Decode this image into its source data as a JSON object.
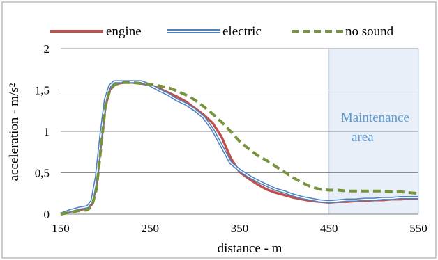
{
  "chart_data": {
    "type": "line",
    "xlabel": "distance - m",
    "ylabel": "acceleration - m/s²",
    "xlim": [
      150,
      550
    ],
    "ylim": [
      0,
      2
    ],
    "x_ticks": [
      "150",
      "250",
      "350",
      "450",
      "550"
    ],
    "x_tick_values": [
      150,
      250,
      350,
      450,
      550
    ],
    "y_ticks": [
      "0",
      "0,5",
      "1",
      "1,5",
      "2"
    ],
    "y_tick_values": [
      0,
      0.5,
      1,
      1.5,
      2
    ],
    "grid": "horizontal",
    "legend_position": "top",
    "annotation": {
      "text_line1": "Maintenance",
      "text_line2": "area",
      "x_from": 450,
      "x_to": 550,
      "color": "#5b9bd5"
    },
    "series": [
      {
        "name": "engine",
        "color": "#c0504d",
        "style": "solid",
        "x": [
          150,
          160,
          170,
          180,
          185,
          190,
          195,
          200,
          205,
          210,
          215,
          220,
          230,
          240,
          250,
          260,
          270,
          280,
          290,
          300,
          310,
          320,
          330,
          340,
          350,
          360,
          370,
          380,
          390,
          400,
          410,
          420,
          430,
          440,
          450,
          460,
          470,
          480,
          490,
          500,
          510,
          520,
          530,
          540,
          550
        ],
        "y": [
          0,
          0.03,
          0.05,
          0.07,
          0.12,
          0.35,
          0.85,
          1.3,
          1.5,
          1.56,
          1.58,
          1.59,
          1.59,
          1.58,
          1.56,
          1.52,
          1.47,
          1.42,
          1.36,
          1.28,
          1.2,
          1.1,
          0.93,
          0.68,
          0.51,
          0.43,
          0.36,
          0.3,
          0.26,
          0.23,
          0.2,
          0.18,
          0.16,
          0.15,
          0.14,
          0.15,
          0.15,
          0.16,
          0.16,
          0.17,
          0.17,
          0.18,
          0.18,
          0.19,
          0.19
        ]
      },
      {
        "name": "electric",
        "color": "#4f81bd",
        "style": "double",
        "x": [
          150,
          160,
          170,
          180,
          185,
          190,
          195,
          200,
          205,
          210,
          215,
          220,
          230,
          240,
          250,
          260,
          270,
          280,
          290,
          300,
          310,
          320,
          330,
          340,
          350,
          360,
          370,
          380,
          390,
          400,
          410,
          420,
          430,
          440,
          450,
          460,
          470,
          480,
          490,
          500,
          510,
          520,
          530,
          540,
          550
        ],
        "y": [
          0,
          0.04,
          0.07,
          0.09,
          0.16,
          0.45,
          0.95,
          1.38,
          1.55,
          1.6,
          1.6,
          1.6,
          1.6,
          1.6,
          1.56,
          1.5,
          1.45,
          1.38,
          1.33,
          1.26,
          1.17,
          1.02,
          0.82,
          0.62,
          0.53,
          0.46,
          0.4,
          0.35,
          0.3,
          0.27,
          0.23,
          0.2,
          0.18,
          0.16,
          0.15,
          0.16,
          0.17,
          0.17,
          0.18,
          0.18,
          0.19,
          0.19,
          0.2,
          0.2,
          0.2
        ]
      },
      {
        "name": "no sound",
        "color": "#77933c",
        "style": "dashed",
        "x": [
          150,
          160,
          170,
          180,
          185,
          190,
          195,
          200,
          205,
          210,
          215,
          220,
          230,
          240,
          250,
          260,
          270,
          280,
          290,
          300,
          310,
          320,
          330,
          340,
          350,
          360,
          370,
          380,
          390,
          400,
          410,
          420,
          430,
          440,
          450,
          460,
          470,
          480,
          490,
          500,
          510,
          520,
          530,
          540,
          550
        ],
        "y": [
          0,
          0.02,
          0.04,
          0.05,
          0.1,
          0.3,
          0.8,
          1.3,
          1.5,
          1.56,
          1.58,
          1.59,
          1.59,
          1.58,
          1.57,
          1.55,
          1.53,
          1.49,
          1.44,
          1.38,
          1.3,
          1.21,
          1.11,
          1.0,
          0.88,
          0.79,
          0.71,
          0.65,
          0.58,
          0.51,
          0.44,
          0.38,
          0.33,
          0.3,
          0.29,
          0.29,
          0.28,
          0.28,
          0.28,
          0.28,
          0.28,
          0.27,
          0.27,
          0.26,
          0.25
        ]
      }
    ]
  }
}
